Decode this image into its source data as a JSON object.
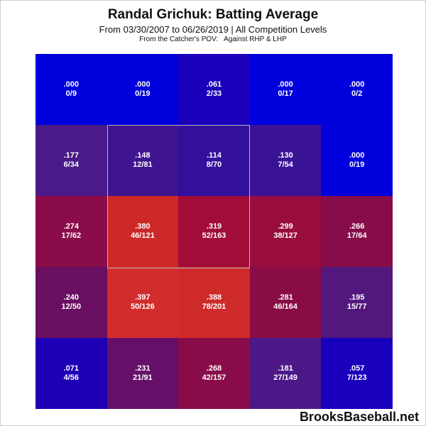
{
  "chart_data": {
    "type": "heatmap",
    "title": "Randal Grichuk: Batting Average",
    "subtitle": "From 03/30/2007 to 06/26/2019 | All Competition Levels",
    "note": "From the Catcher's POV:   Against RHP & LHP",
    "rows": [
      [
        {
          "avg": ".000",
          "ratio": "0/9",
          "color": "#0000dd"
        },
        {
          "avg": ".000",
          "ratio": "0/19",
          "color": "#0000dd"
        },
        {
          "avg": ".061",
          "ratio": "2/33",
          "color": "#1a00bb"
        },
        {
          "avg": ".000",
          "ratio": "0/17",
          "color": "#0000dd"
        },
        {
          "avg": ".000",
          "ratio": "0/2",
          "color": "#0000dd"
        }
      ],
      [
        {
          "avg": ".177",
          "ratio": "6/34",
          "color": "#4a1a88"
        },
        {
          "avg": ".148",
          "ratio": "12/81",
          "color": "#3f1490"
        },
        {
          "avg": ".114",
          "ratio": "8/70",
          "color": "#33109c"
        },
        {
          "avg": ".130",
          "ratio": "7/54",
          "color": "#3a1296"
        },
        {
          "avg": ".000",
          "ratio": "0/19",
          "color": "#0000dd"
        }
      ],
      [
        {
          "avg": ".274",
          "ratio": "17/62",
          "color": "#8a0c48"
        },
        {
          "avg": ".380",
          "ratio": "46/121",
          "color": "#cc2828"
        },
        {
          "avg": ".319",
          "ratio": "52/163",
          "color": "#a20c38"
        },
        {
          "avg": ".299",
          "ratio": "38/127",
          "color": "#980c3e"
        },
        {
          "avg": ".266",
          "ratio": "17/64",
          "color": "#860c4a"
        }
      ],
      [
        {
          "avg": ".240",
          "ratio": "12/50",
          "color": "#6a0e62"
        },
        {
          "avg": ".397",
          "ratio": "50/126",
          "color": "#d22c2c"
        },
        {
          "avg": ".388",
          "ratio": "78/201",
          "color": "#cf2a2a"
        },
        {
          "avg": ".281",
          "ratio": "46/164",
          "color": "#8a0c46"
        },
        {
          "avg": ".195",
          "ratio": "15/77",
          "color": "#52187e"
        }
      ],
      [
        {
          "avg": ".071",
          "ratio": "4/56",
          "color": "#2000b6"
        },
        {
          "avg": ".231",
          "ratio": "21/91",
          "color": "#641068"
        },
        {
          "avg": ".268",
          "ratio": "42/157",
          "color": "#880c48"
        },
        {
          "avg": ".181",
          "ratio": "27/149",
          "color": "#4c1888"
        },
        {
          "avg": ".057",
          "ratio": "7/123",
          "color": "#1800bc"
        }
      ]
    ],
    "strike_zone": {
      "rows": [
        1,
        3
      ],
      "cols": [
        1,
        3
      ]
    }
  },
  "watermark": "BrooksBaseball.net"
}
